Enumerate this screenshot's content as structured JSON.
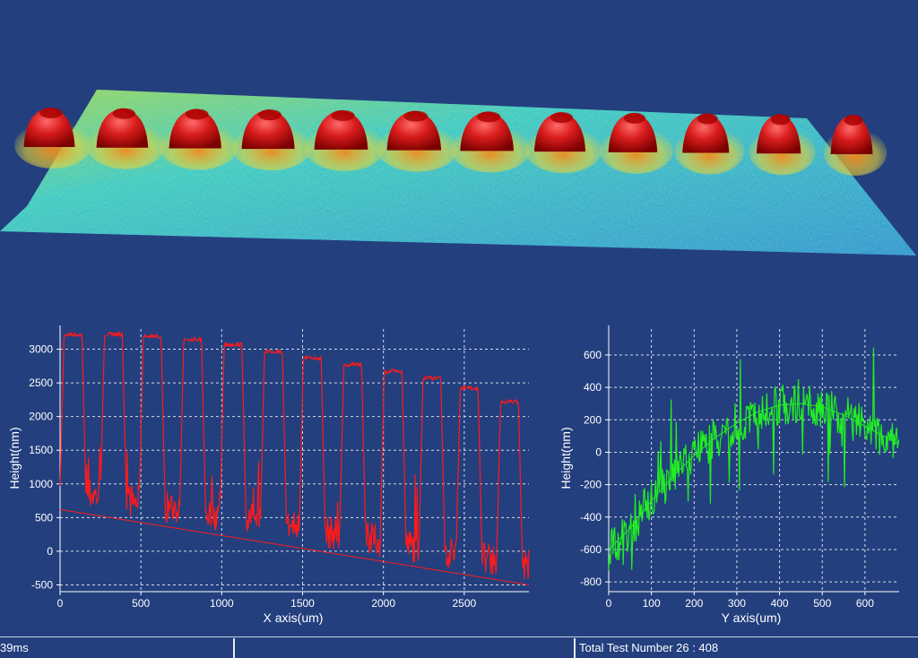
{
  "chart_data": [
    {
      "type": "surface",
      "title": "",
      "colormap": [
        "#1f8fd6",
        "#2fc6c4",
        "#8fd25a",
        "#e6d33a",
        "#e07a1e",
        "#c81414"
      ],
      "features": {
        "pillar_count": 12
      }
    },
    {
      "type": "line",
      "title": "",
      "xlabel": "X axis(um)",
      "ylabel": "Height(nm)",
      "xlim": [
        0,
        2900
      ],
      "ylim": [
        -600,
        3300
      ],
      "xticks": [
        0,
        500,
        1000,
        1500,
        2000,
        2500
      ],
      "yticks": [
        -500,
        0,
        500,
        1000,
        1500,
        2000,
        2500,
        3000
      ],
      "grid": true,
      "series": [
        {
          "color": "#ff1a1a",
          "plateau_heights": [
            3250,
            3250,
            3220,
            3180,
            3100,
            3000,
            2900,
            2800,
            2700,
            2600,
            2450,
            2250
          ],
          "plateau_centers": [
            80,
            330,
            570,
            820,
            1070,
            1320,
            1560,
            1810,
            2060,
            2300,
            2530,
            2780
          ],
          "baseline_start": [
            0,
            620
          ],
          "baseline_end": [
            2900,
            -500
          ]
        }
      ]
    },
    {
      "type": "line",
      "title": "",
      "xlabel": "Y axis(um)",
      "ylabel": "Height(nm)",
      "xlim": [
        0,
        680
      ],
      "ylim": [
        -860,
        760
      ],
      "xticks": [
        0,
        100,
        200,
        300,
        400,
        500,
        600
      ],
      "yticks": [
        -800,
        -600,
        -400,
        -200,
        0,
        200,
        400,
        600
      ],
      "grid": true,
      "series": [
        {
          "color": "#22ee22",
          "fit_curve": [
            [
              0,
              -600
            ],
            [
              50,
              -470
            ],
            [
              100,
              -300
            ],
            [
              150,
              -150
            ],
            [
              200,
              -20
            ],
            [
              250,
              90
            ],
            [
              300,
              180
            ],
            [
              350,
              250
            ],
            [
              400,
              290
            ],
            [
              450,
              300
            ],
            [
              500,
              280
            ],
            [
              550,
              230
            ],
            [
              600,
              160
            ],
            [
              650,
              90
            ],
            [
              680,
              50
            ]
          ]
        }
      ]
    }
  ],
  "status": {
    "left": "39ms",
    "middle": "",
    "right": "Total Test Number 26  :   408"
  }
}
